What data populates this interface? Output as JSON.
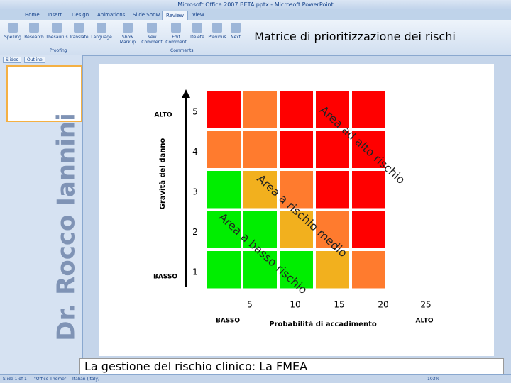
{
  "window_title": "Microsoft Office 2007 BETA.pptx - Microsoft PowerPoint",
  "tabs": [
    "Home",
    "Insert",
    "Design",
    "Animations",
    "Slide Show",
    "Review",
    "View"
  ],
  "active_tab": 5,
  "ribbon": {
    "buttons": [
      "Spelling",
      "Research",
      "Thesaurus",
      "Translate",
      "Language",
      "Show Markup",
      "New Comment",
      "Edit Comment",
      "Delete",
      "Previous",
      "Next"
    ],
    "groups": [
      "Proofing",
      "Comments"
    ]
  },
  "panel_tabs": [
    "Slides",
    "Outline"
  ],
  "slide": {
    "title": "Matrice di prioritizzazione dei rischi",
    "watermark": "Dr. Rocco Iannini",
    "y_axis_label": "Gravità del danno",
    "y_high": "ALTO",
    "y_low": "BASSO",
    "row_labels": [
      5,
      4,
      3,
      2,
      1
    ],
    "x_axis_label": "Probabilità di accadimento",
    "x_low": "BASSO",
    "x_high": "ALTO",
    "x_labels": [
      5,
      10,
      15,
      20,
      25
    ],
    "zones": [
      "Area ad alto rischio",
      "Area a rischio medio",
      "Area a basso rischio"
    ],
    "matrix_colors": [
      [
        "#ff0000",
        "#ff7b2e",
        "#ff0000",
        "#ff0000",
        "#ff0000"
      ],
      [
        "#ff7b2e",
        "#ff7b2e",
        "#ff0000",
        "#ff0000",
        "#ff0000"
      ],
      [
        "#00ee00",
        "#f2b01e",
        "#ff7b2e",
        "#ff0000",
        "#ff0000"
      ],
      [
        "#00ee00",
        "#00ee00",
        "#f2b01e",
        "#ff7b2e",
        "#ff0000"
      ],
      [
        "#00ee00",
        "#00ee00",
        "#00ee00",
        "#f2b01e",
        "#ff7b2e"
      ]
    ],
    "footer": "La gestione del rischio clinico: La FMEA"
  },
  "status_bar": {
    "slide": "Slide 1 of 1",
    "theme": "\"Office Theme\"",
    "language": "Italian (Italy)",
    "zoom": "103%"
  }
}
